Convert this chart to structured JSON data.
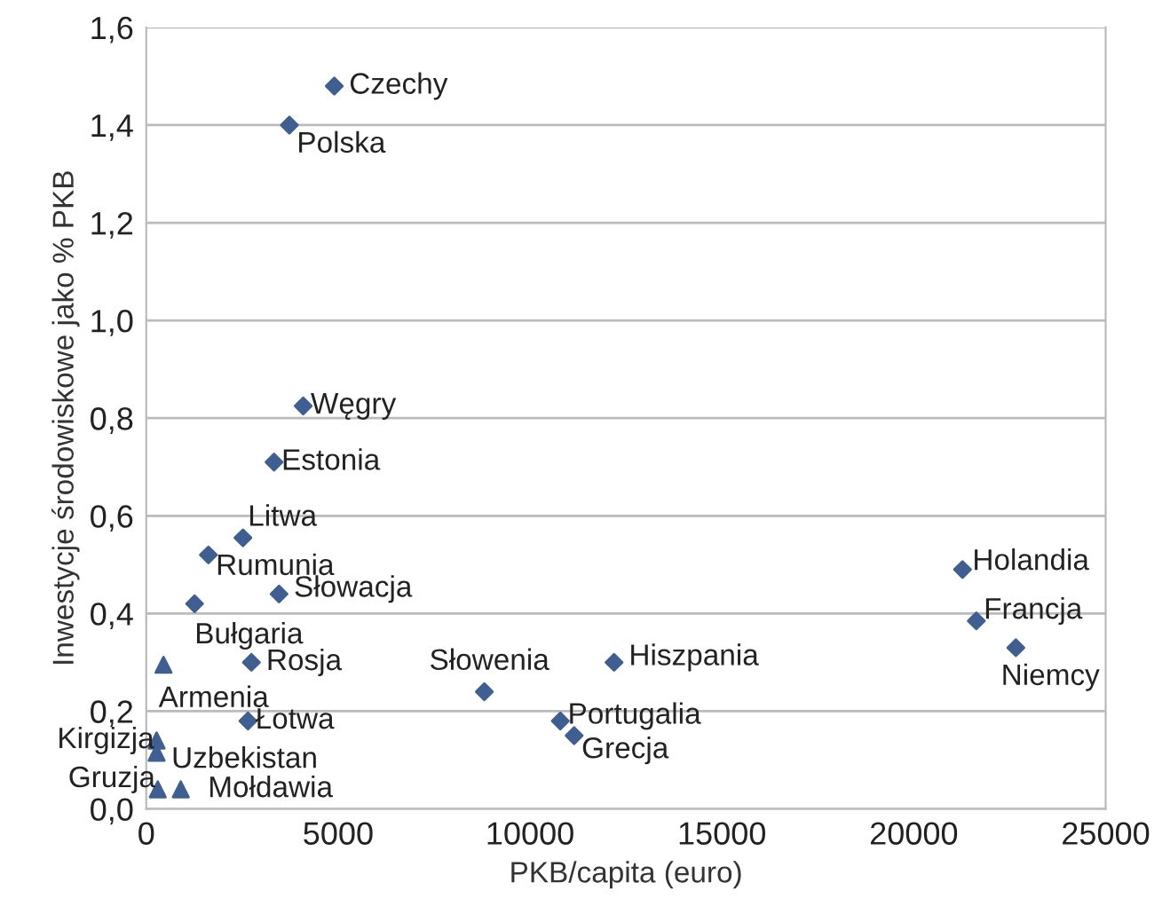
{
  "chart_data": {
    "type": "scatter",
    "xlabel": "PKB/capita (euro)",
    "ylabel": "Inwestycje środowiskowe jako % PKB",
    "xlim": [
      0,
      25000
    ],
    "xticks": [
      0,
      5000,
      10000,
      15000,
      20000,
      25000
    ],
    "ylim": [
      0,
      1.6
    ],
    "yticks": [
      {
        "value": 0,
        "label": "0,0"
      },
      {
        "value": 0.2,
        "label": "0,2"
      },
      {
        "value": 0.4,
        "label": "0,4"
      },
      {
        "value": 0.6,
        "label": "0,6"
      },
      {
        "value": 0.8,
        "label": "0,8"
      },
      {
        "value": 1.0,
        "label": "1,0"
      },
      {
        "value": 1.2,
        "label": "1,2"
      },
      {
        "value": 1.4,
        "label": "1,4"
      },
      {
        "value": 1.6,
        "label": "1,6"
      }
    ],
    "grid": "y",
    "legend": false,
    "series": [
      {
        "color": "#3f5f93",
        "marker": "diamond",
        "x": [
          4900,
          3730,
          4090,
          3330,
          2520,
          1620,
          3460,
          1260,
          2740,
          2650,
          8810,
          10790,
          11150,
          12190,
          21270,
          21630,
          22660
        ],
        "values": [
          1.48,
          1.4,
          0.825,
          0.71,
          0.555,
          0.52,
          0.44,
          0.42,
          0.3,
          0.18,
          0.24,
          0.18,
          0.15,
          0.3,
          0.49,
          0.385,
          0.33
        ]
      },
      {
        "color": "#3f5f93",
        "marker": "triangle",
        "x": [
          450,
          270,
          270,
          300,
          900
        ],
        "values": [
          0.295,
          0.14,
          0.115,
          0.04,
          0.04
        ]
      }
    ],
    "annotations": [
      {
        "text": "Czechy",
        "x": 4900,
        "y": 1.48
      },
      {
        "text": "Polska",
        "x": 3730,
        "y": 1.4
      },
      {
        "text": "Węgry",
        "x": 4090,
        "y": 0.825
      },
      {
        "text": "Estonia",
        "x": 3330,
        "y": 0.71
      },
      {
        "text": "Litwa",
        "x": 2520,
        "y": 0.555
      },
      {
        "text": "Rumunia",
        "x": 1620,
        "y": 0.52
      },
      {
        "text": "Słowacja",
        "x": 3460,
        "y": 0.44
      },
      {
        "text": "Bułgaria",
        "x": 1260,
        "y": 0.42
      },
      {
        "text": "Rosja",
        "x": 2740,
        "y": 0.3
      },
      {
        "text": "Łotwa",
        "x": 2650,
        "y": 0.18
      },
      {
        "text": "Słowenia",
        "x": 8810,
        "y": 0.24
      },
      {
        "text": "Portugalia",
        "x": 10790,
        "y": 0.18
      },
      {
        "text": "Grecja",
        "x": 11150,
        "y": 0.15
      },
      {
        "text": "Hiszpania",
        "x": 12190,
        "y": 0.3
      },
      {
        "text": "Holandia",
        "x": 21270,
        "y": 0.49
      },
      {
        "text": "Francja",
        "x": 21630,
        "y": 0.385
      },
      {
        "text": "Niemcy",
        "x": 22660,
        "y": 0.33
      },
      {
        "text": "Armenia",
        "x": 450,
        "y": 0.295
      },
      {
        "text": "Kirgizja",
        "x": 270,
        "y": 0.14
      },
      {
        "text": "Uzbekistan",
        "x": 270,
        "y": 0.115
      },
      {
        "text": "Gruzja",
        "x": 300,
        "y": 0.04
      },
      {
        "text": "Mołdawia",
        "x": 900,
        "y": 0.04
      }
    ]
  }
}
